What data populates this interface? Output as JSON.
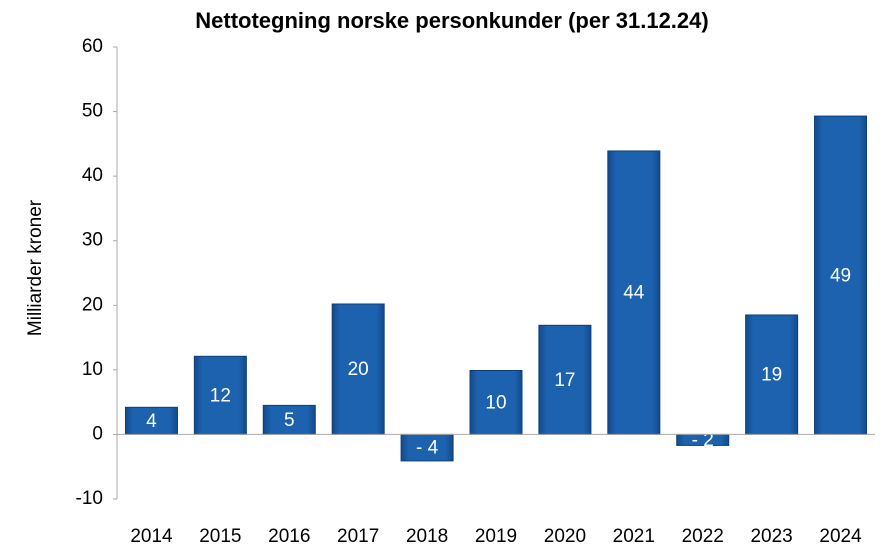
{
  "chart_data": {
    "type": "bar",
    "title": "Nettotegning norske personkunder (per 31.12.24)",
    "y_label": "Milliarder kroner",
    "categories": [
      "2014",
      "2015",
      "2016",
      "2017",
      "2018",
      "2019",
      "2020",
      "2021",
      "2022",
      "2023",
      "2024"
    ],
    "values": [
      4.2,
      12.1,
      4.5,
      20.2,
      -4.1,
      9.9,
      16.9,
      43.9,
      -1.7,
      18.5,
      49.3
    ],
    "value_labels": [
      "4",
      "12",
      "5",
      "20",
      "- 4",
      "10",
      "17",
      "44",
      "- 2",
      "19",
      "49"
    ],
    "color": "#1b5ea9",
    "ylim": [
      -10,
      60
    ],
    "yticks": [
      -10,
      0,
      10,
      20,
      30,
      40,
      50,
      60
    ],
    "grid": false
  }
}
